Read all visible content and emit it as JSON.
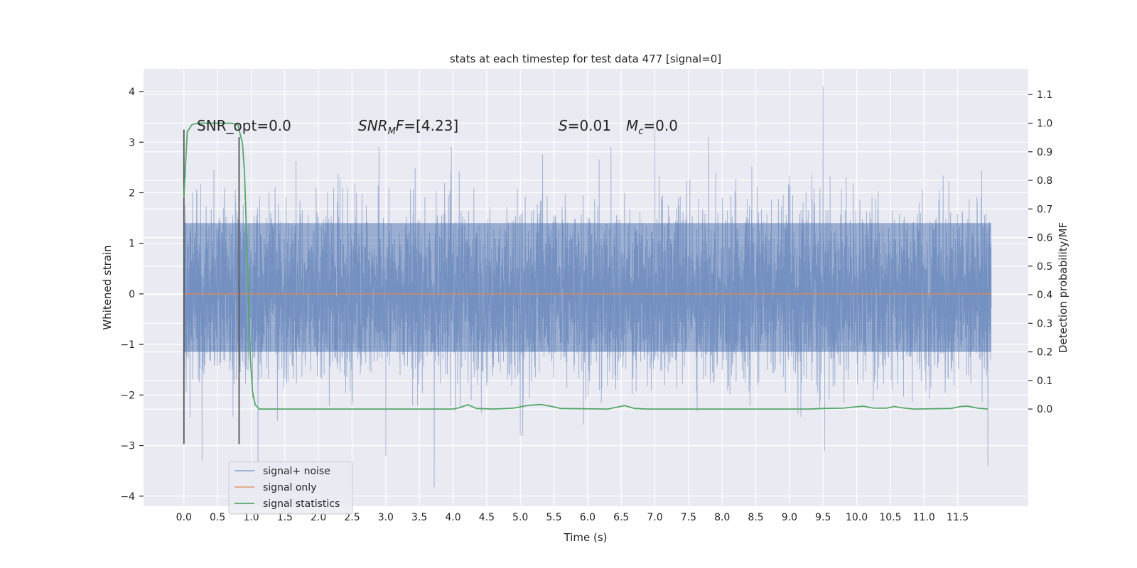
{
  "chart_data": {
    "type": "line",
    "title": "stats at each timestep for test data 477 [signal=0]",
    "xlabel": "Time (s)",
    "ylabel_left": "Whitened strain",
    "ylabel_right": "Detection probability/MF",
    "xlim": [
      -0.6,
      12.55
    ],
    "ylim_left": [
      -4.2,
      4.45
    ],
    "ylim_right": [
      -0.34,
      1.19
    ],
    "x_ticks": [
      "0.0",
      "0.5",
      "1.0",
      "1.5",
      "2.0",
      "2.5",
      "3.0",
      "3.5",
      "4.0",
      "4.5",
      "5.0",
      "5.5",
      "6.0",
      "6.5",
      "7.0",
      "7.5",
      "8.0",
      "8.5",
      "9.0",
      "9.5",
      "10.0",
      "10.5",
      "11.0",
      "11.5"
    ],
    "y_ticks_left": [
      "4",
      "3",
      "2",
      "1",
      "0",
      "−1",
      "−2",
      "−3",
      "−4"
    ],
    "y_ticks_right": [
      "1.1",
      "1.0",
      "0.9",
      "0.8",
      "0.7",
      "0.6",
      "0.5",
      "0.4",
      "0.3",
      "0.2",
      "0.1",
      "0.0"
    ],
    "annotations": {
      "snr_opt": "SNR_opt=0.0",
      "snr_mf_name": "SNR",
      "snr_mf_sub": "M",
      "snr_mf_tail": "F",
      "snr_mf_value": "=[4.23]",
      "s_name": "S",
      "s_value": "=0.01",
      "mc_name": "M",
      "mc_sub": "c",
      "mc_value": "=0.0"
    },
    "series": [
      {
        "name": "signal+ noise",
        "color": "#4c72b0",
        "style": "dense noise trace",
        "x_range": [
          0.0,
          12.0
        ],
        "core_band": [
          -1.15,
          1.4
        ],
        "typical_envelope": [
          -2.2,
          2.3
        ],
        "peaks": [
          {
            "x": 0.27,
            "y": -3.3
          },
          {
            "x": 1.1,
            "y": -3.4
          },
          {
            "x": 2.9,
            "y": 2.9
          },
          {
            "x": 3.0,
            "y": -3.2
          },
          {
            "x": 3.72,
            "y": -3.82
          },
          {
            "x": 5.0,
            "y": -2.8
          },
          {
            "x": 7.0,
            "y": 3.25
          },
          {
            "x": 7.8,
            "y": 3.1
          },
          {
            "x": 9.5,
            "y": 4.1
          },
          {
            "x": 9.52,
            "y": -3.1
          },
          {
            "x": 11.95,
            "y": -3.4
          }
        ]
      },
      {
        "name": "signal only",
        "color": "#dd8452",
        "points": [
          [
            0.0,
            0.0
          ],
          [
            12.0,
            0.0
          ]
        ]
      },
      {
        "name": "signal statistics",
        "color": "#55a868",
        "axis": "right",
        "points": [
          [
            0.0,
            0.74
          ],
          [
            0.05,
            0.97
          ],
          [
            0.12,
            0.995
          ],
          [
            0.2,
            1.0
          ],
          [
            0.3,
            1.0
          ],
          [
            0.5,
            1.0
          ],
          [
            0.7,
            1.0
          ],
          [
            0.8,
            0.995
          ],
          [
            0.87,
            0.93
          ],
          [
            0.9,
            0.83
          ],
          [
            0.93,
            0.62
          ],
          [
            0.96,
            0.38
          ],
          [
            0.99,
            0.17
          ],
          [
            1.02,
            0.06
          ],
          [
            1.06,
            0.015
          ],
          [
            1.12,
            0.0
          ],
          [
            2.0,
            0.0
          ],
          [
            3.0,
            0.0
          ],
          [
            4.0,
            0.0
          ],
          [
            4.1,
            0.005
          ],
          [
            4.22,
            0.015
          ],
          [
            4.35,
            0.002
          ],
          [
            4.6,
            0.0
          ],
          [
            4.9,
            0.003
          ],
          [
            5.1,
            0.012
          ],
          [
            5.3,
            0.016
          ],
          [
            5.45,
            0.01
          ],
          [
            5.6,
            0.002
          ],
          [
            6.3,
            0.0
          ],
          [
            6.45,
            0.007
          ],
          [
            6.55,
            0.012
          ],
          [
            6.7,
            0.002
          ],
          [
            6.9,
            0.0
          ],
          [
            8.0,
            0.0
          ],
          [
            9.0,
            0.0
          ],
          [
            9.3,
            0.0
          ],
          [
            9.5,
            0.002
          ],
          [
            9.8,
            0.003
          ],
          [
            10.0,
            0.008
          ],
          [
            10.1,
            0.01
          ],
          [
            10.25,
            0.003
          ],
          [
            10.45,
            0.003
          ],
          [
            10.55,
            0.009
          ],
          [
            10.68,
            0.004
          ],
          [
            10.85,
            0.0
          ],
          [
            11.4,
            0.002
          ],
          [
            11.55,
            0.009
          ],
          [
            11.65,
            0.01
          ],
          [
            11.8,
            0.003
          ],
          [
            11.95,
            0.0
          ]
        ]
      }
    ],
    "vertical_markers": [
      {
        "x": 0.0,
        "y_top": 3.25,
        "y_bottom": -2.97,
        "color": "#555555"
      },
      {
        "x": 0.82,
        "y_top": 3.1,
        "y_bottom": -2.97,
        "color": "#555555"
      }
    ],
    "legend": {
      "position": "lower-left",
      "entries": [
        "signal+ noise",
        "signal only",
        "signal statistics"
      ]
    },
    "grid": true,
    "background": "#eaeaf2"
  }
}
